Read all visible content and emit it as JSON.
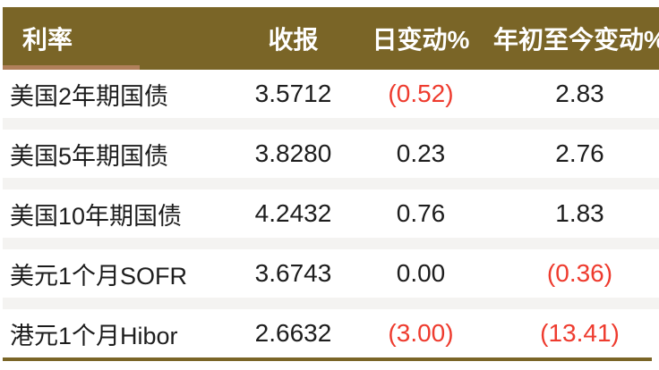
{
  "chart_data": {
    "type": "table",
    "title": "",
    "columns": [
      "利率",
      "收报",
      "日变动%",
      "年初至今变动%"
    ],
    "rows": [
      {
        "rate": "美国2年期国债",
        "close": "3.5712",
        "day_change_pct": "(0.52)",
        "ytd_change_pct": "2.83"
      },
      {
        "rate": "美国5年期国债",
        "close": "3.8280",
        "day_change_pct": "0.23",
        "ytd_change_pct": "2.76"
      },
      {
        "rate": "美国10年期国债",
        "close": "4.2432",
        "day_change_pct": "0.76",
        "ytd_change_pct": "1.83"
      },
      {
        "rate": "美元1个月SOFR",
        "close": "3.6743",
        "day_change_pct": "0.00",
        "ytd_change_pct": "(0.36)"
      },
      {
        "rate": "港元1个月Hibor",
        "close": "2.6632",
        "day_change_pct": "(3.00)",
        "ytd_change_pct": "(13.41)"
      }
    ],
    "layout_hints": {
      "negative_values_in_parentheses": true,
      "negative_value_color": "#ee3b2e"
    }
  },
  "colors": {
    "header_bg": "#7a6527",
    "header_text": "#ffffff",
    "accent_strip": "#b1805a",
    "separator": "#f4f3f1",
    "text": "#1d1d1d",
    "negative": "#ee3b2e",
    "bottom_rule": "#7a6527"
  }
}
